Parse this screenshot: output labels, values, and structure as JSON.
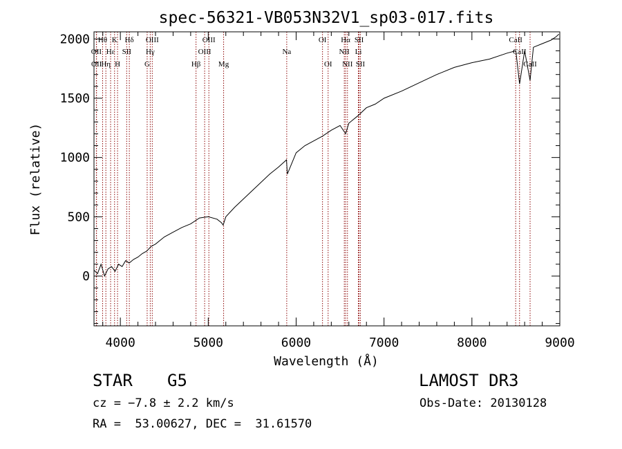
{
  "chart_data": {
    "type": "line",
    "title": "spec-56321-VB053N32V1_sp03-017.fits",
    "xlabel": "Wavelength (Å)",
    "ylabel": "Flux (relative)",
    "xlim": [
      3700,
      9000
    ],
    "ylim": [
      -420,
      2060
    ],
    "xticks": [
      {
        "value": 4000,
        "label": "4000"
      },
      {
        "value": 5000,
        "label": "5000"
      },
      {
        "value": 6000,
        "label": "6000"
      },
      {
        "value": 7000,
        "label": "7000"
      },
      {
        "value": 8000,
        "label": "8000"
      },
      {
        "value": 9000,
        "label": "9000"
      }
    ],
    "yticks": [
      {
        "value": 0,
        "label": "0"
      },
      {
        "value": 500,
        "label": "500"
      },
      {
        "value": 1000,
        "label": "1000"
      },
      {
        "value": 1500,
        "label": "1500"
      },
      {
        "value": 2000,
        "label": "2000"
      }
    ],
    "spectrum": {
      "x": [
        3700,
        3740,
        3780,
        3820,
        3860,
        3900,
        3940,
        3980,
        4020,
        4060,
        4100,
        4150,
        4200,
        4250,
        4300,
        4350,
        4400,
        4500,
        4600,
        4700,
        4800,
        4900,
        5000,
        5100,
        5150,
        5170,
        5200,
        5300,
        5400,
        5500,
        5600,
        5700,
        5800,
        5890,
        5900,
        6000,
        6100,
        6200,
        6300,
        6400,
        6500,
        6563,
        6600,
        6700,
        6800,
        6900,
        7000,
        7200,
        7400,
        7600,
        7800,
        8000,
        8200,
        8400,
        8500,
        8542,
        8600,
        8662,
        8700,
        8800,
        8900,
        8960,
        8990
      ],
      "y": [
        50,
        20,
        100,
        0,
        60,
        80,
        40,
        100,
        80,
        130,
        110,
        140,
        160,
        190,
        210,
        250,
        270,
        330,
        370,
        410,
        440,
        490,
        500,
        480,
        450,
        430,
        500,
        580,
        650,
        720,
        790,
        860,
        920,
        980,
        860,
        1040,
        1100,
        1140,
        1180,
        1230,
        1270,
        1200,
        1290,
        1350,
        1420,
        1450,
        1500,
        1560,
        1630,
        1700,
        1760,
        1800,
        1830,
        1880,
        1900,
        1620,
        1900,
        1650,
        1930,
        1960,
        1990,
        2020,
        2040
      ]
    },
    "lines": [
      {
        "label": "Hθ",
        "wavelength": 3798,
        "row": 0
      },
      {
        "label": "OII",
        "wavelength": 3727,
        "row": 1
      },
      {
        "label": "OII",
        "wavelength": 3729,
        "row": 2
      },
      {
        "label": "Hη",
        "wavelength": 3835,
        "row": 2
      },
      {
        "label": "Hε",
        "wavelength": 3889,
        "row": 1
      },
      {
        "label": "K",
        "wavelength": 3934,
        "row": 0
      },
      {
        "label": "H",
        "wavelength": 3968,
        "row": 2
      },
      {
        "label": "SII",
        "wavelength": 4072,
        "row": 1
      },
      {
        "label": "Hδ",
        "wavelength": 4102,
        "row": 0
      },
      {
        "label": "OIII",
        "wavelength": 4363,
        "row": 0
      },
      {
        "label": "Hγ",
        "wavelength": 4340,
        "row": 1
      },
      {
        "label": "G",
        "wavelength": 4305,
        "row": 2
      },
      {
        "label": "Hβ",
        "wavelength": 4861,
        "row": 2
      },
      {
        "label": "OIII",
        "wavelength": 5007,
        "row": 0
      },
      {
        "label": "OIII",
        "wavelength": 4959,
        "row": 1
      },
      {
        "label": "Mg",
        "wavelength": 5175,
        "row": 2
      },
      {
        "label": "Na",
        "wavelength": 5893,
        "row": 1
      },
      {
        "label": "OI",
        "wavelength": 6300,
        "row": 0
      },
      {
        "label": "OI",
        "wavelength": 6364,
        "row": 2
      },
      {
        "label": "Hα",
        "wavelength": 6563,
        "row": 0
      },
      {
        "label": "NII",
        "wavelength": 6548,
        "row": 1
      },
      {
        "label": "NII",
        "wavelength": 6584,
        "row": 2
      },
      {
        "label": "SII",
        "wavelength": 6716,
        "row": 0
      },
      {
        "label": "Li",
        "wavelength": 6708,
        "row": 1
      },
      {
        "label": "SII",
        "wavelength": 6731,
        "row": 2
      },
      {
        "label": "CaII",
        "wavelength": 8498,
        "row": 0
      },
      {
        "label": "CaII",
        "wavelength": 8542,
        "row": 1
      },
      {
        "label": "CaII",
        "wavelength": 8662,
        "row": 2
      }
    ]
  },
  "info": {
    "object_class": "STAR",
    "object_subclass": "G5",
    "cz": "cz = −7.8 ± 2.2 km/s",
    "radec": "RA =  53.00627, DEC =  31.61570",
    "survey": "LAMOST DR3",
    "obs_date": "Obs-Date: 20130128"
  },
  "colors": {
    "line_marker": "#8b0000",
    "spectrum": "#000000",
    "axis": "#000000"
  }
}
